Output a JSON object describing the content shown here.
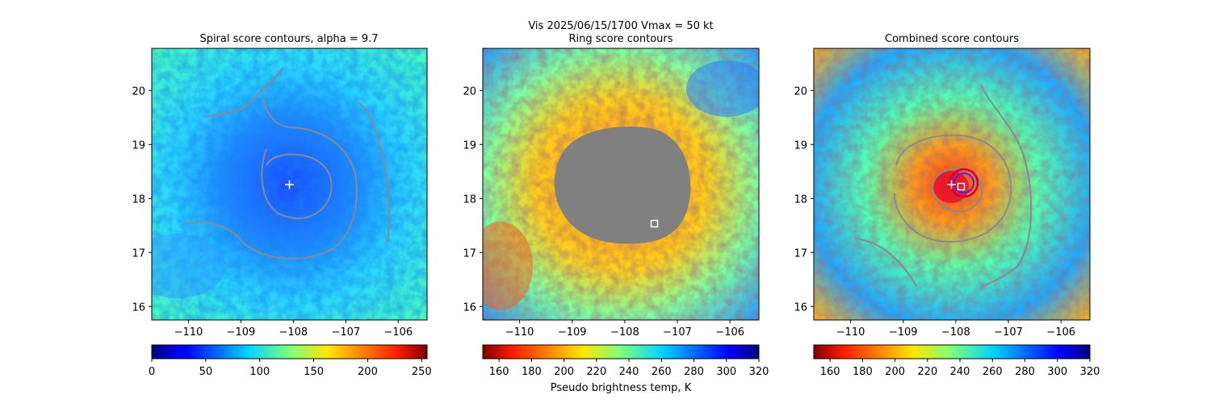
{
  "figure": {
    "suptitle_line1": "Vis  2025/06/15/1700    Vmax = 50 kt",
    "suptitle_line2": "Ring score contours",
    "colorbar_label": "Pseudo brightness temp, K"
  },
  "colors": {
    "contour": "#8a8a8a",
    "masked": "#808080",
    "marker": "#ffffff",
    "ring_contour": "#c8004a",
    "ring_contour_inner": "#5a1fd6"
  },
  "chart_data": [
    {
      "type": "heatmap",
      "title": "Spiral score contours, alpha =  9.7",
      "x_ticks": [
        -110,
        -109,
        -108,
        -107,
        -106
      ],
      "y_ticks": [
        16,
        17,
        18,
        19,
        20
      ],
      "xlim": [
        -110.7,
        -105.45
      ],
      "ylim": [
        15.75,
        20.78
      ],
      "colormap": "jet",
      "colorbar_ticks": [
        0,
        50,
        100,
        150,
        200,
        250
      ],
      "colorbar_range": [
        0,
        255
      ],
      "center_marker": {
        "lon": -108.05,
        "lat": 18.25,
        "symbol": "+"
      },
      "contours": "spiral score levels"
    },
    {
      "type": "heatmap",
      "title": "Ring score contours",
      "x_ticks": [
        -110,
        -109,
        -108,
        -107,
        -106
      ],
      "y_ticks": [
        16,
        17,
        18,
        19,
        20
      ],
      "xlim": [
        -110.7,
        -105.45
      ],
      "ylim": [
        15.75,
        20.78
      ],
      "colormap": "jet_r",
      "colorbar_ticks": [
        160,
        180,
        200,
        220,
        240,
        260,
        280,
        300,
        320
      ],
      "colorbar_range": [
        150,
        320
      ],
      "center_marker": {
        "lon": -107.45,
        "lat": 17.52,
        "symbol": "square"
      },
      "masked_region": {
        "center_lon": -108.0,
        "center_lat": 18.1,
        "note": "gray masked area"
      }
    },
    {
      "type": "heatmap",
      "title": "Combined score contours",
      "x_ticks": [
        -110,
        -109,
        -108,
        -107,
        -106
      ],
      "y_ticks": [
        16,
        17,
        18,
        19,
        20
      ],
      "xlim": [
        -110.7,
        -105.45
      ],
      "ylim": [
        15.75,
        20.78
      ],
      "colormap": "jet_r",
      "colorbar_ticks": [
        160,
        180,
        200,
        220,
        240,
        260,
        280,
        300,
        320
      ],
      "colorbar_range": [
        150,
        320
      ],
      "center_marker": {
        "lon": -107.9,
        "lat": 18.22,
        "symbol": "square"
      },
      "plus_marker": {
        "lon": -108.1,
        "lat": 18.25,
        "symbol": "+"
      }
    }
  ]
}
